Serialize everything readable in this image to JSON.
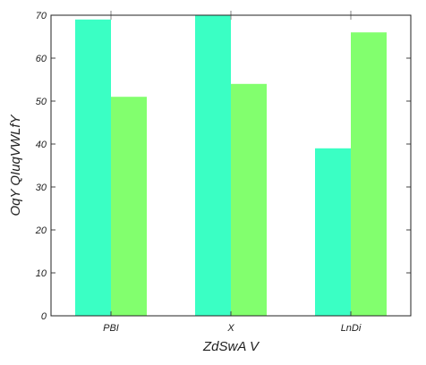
{
  "chart_data": {
    "type": "bar",
    "categories": [
      "PBI",
      "X",
      "LnDi"
    ],
    "series": [
      {
        "values": [
          69,
          70,
          39
        ],
        "color": "#3affc4"
      },
      {
        "values": [
          51,
          54,
          66
        ],
        "color": "#82ff6e"
      }
    ],
    "xlabel": "ZdSwA V",
    "ylabel": "OqY QIuqVWLfY",
    "ylim": [
      0,
      70
    ],
    "yticks": [
      0,
      10,
      20,
      30,
      40,
      50,
      60,
      70
    ],
    "grid": false
  }
}
